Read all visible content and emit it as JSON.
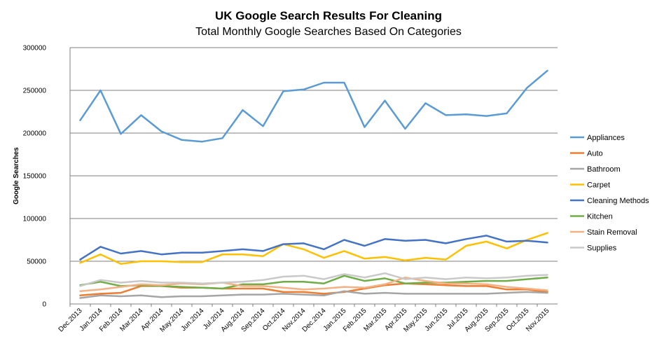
{
  "chart_data": {
    "type": "line",
    "title": "UK Google Search Results For Cleaning",
    "subtitle": "Total Monthly Google Searches Based On Categories",
    "ylabel": "Google Searches",
    "xlabel": "",
    "ylim": [
      0,
      300000
    ],
    "yticks": [
      0,
      50000,
      100000,
      150000,
      200000,
      250000,
      300000
    ],
    "grid": true,
    "legend_position": "right",
    "categories": [
      "Dec.2013",
      "Jan.2014",
      "Feb.2014",
      "Mar.2014",
      "Apr.2014",
      "May.2014",
      "Jun.2014",
      "Jul.2014",
      "Aug.2014",
      "Sep.2014",
      "Oct.2014",
      "Nov.2014",
      "Dec.2014",
      "Jan.2015",
      "Feb.2015",
      "Mar.2015",
      "Apr.2015",
      "May.2015",
      "Jun.2015",
      "Jul.2015",
      "Aug.2015",
      "Sep.2015",
      "Oct.2015",
      "Nov.2015"
    ],
    "series": [
      {
        "name": "Appliances",
        "color": "#5b9bd5",
        "values": [
          215000,
          250000,
          199000,
          221000,
          202000,
          192000,
          190000,
          194000,
          227000,
          208000,
          249000,
          251000,
          259000,
          259000,
          207000,
          238000,
          205000,
          235000,
          221000,
          222000,
          220000,
          223000,
          253000,
          273000
        ]
      },
      {
        "name": "Auto",
        "color": "#ed7d31",
        "values": [
          10000,
          12000,
          13000,
          21000,
          21000,
          19000,
          19000,
          18000,
          18000,
          18000,
          14000,
          14000,
          12000,
          14000,
          18000,
          22000,
          24000,
          23000,
          22000,
          21000,
          21000,
          17000,
          17000,
          14000
        ]
      },
      {
        "name": "Bathroom",
        "color": "#a5a5a5",
        "values": [
          7000,
          10000,
          9000,
          10000,
          8000,
          9000,
          9000,
          10000,
          11000,
          11000,
          12000,
          11000,
          10000,
          15000,
          12000,
          13000,
          12000,
          12000,
          12000,
          12000,
          12000,
          13000,
          14000,
          13000
        ]
      },
      {
        "name": "Carpet",
        "color": "#ffc000",
        "values": [
          48000,
          58000,
          47000,
          50000,
          50000,
          49000,
          49000,
          58000,
          58000,
          56000,
          70000,
          64000,
          54000,
          62000,
          53000,
          55000,
          51000,
          54000,
          52000,
          68000,
          73000,
          65000,
          75000,
          83000
        ]
      },
      {
        "name": "Cleaning Methods",
        "color": "#4472c4",
        "values": [
          52000,
          67000,
          59000,
          62000,
          58000,
          60000,
          60000,
          62000,
          64000,
          62000,
          70000,
          71000,
          64000,
          75000,
          68000,
          76000,
          74000,
          75000,
          71000,
          76000,
          80000,
          73000,
          74000,
          72000
        ]
      },
      {
        "name": "Kitchen",
        "color": "#70ad47",
        "values": [
          22000,
          26000,
          21000,
          22000,
          21000,
          20000,
          19000,
          18000,
          23000,
          23000,
          26000,
          26000,
          24000,
          33000,
          27000,
          30000,
          24000,
          25000,
          25000,
          26000,
          27000,
          27000,
          29000,
          31000
        ]
      },
      {
        "name": "Stain Removal",
        "color": "#f4b183",
        "values": [
          15000,
          17000,
          20000,
          23000,
          22000,
          24000,
          23000,
          25000,
          21000,
          21000,
          19000,
          17000,
          18000,
          20000,
          19000,
          23000,
          31000,
          27000,
          24000,
          24000,
          23000,
          20000,
          18000,
          16000
        ]
      },
      {
        "name": "Supplies",
        "color": "#c9c9c9",
        "values": [
          21000,
          28000,
          25000,
          27000,
          25000,
          25000,
          24000,
          25000,
          26000,
          28000,
          32000,
          33000,
          29000,
          35000,
          31000,
          36000,
          29000,
          31000,
          29000,
          31000,
          30000,
          31000,
          33000,
          34000
        ]
      }
    ]
  }
}
